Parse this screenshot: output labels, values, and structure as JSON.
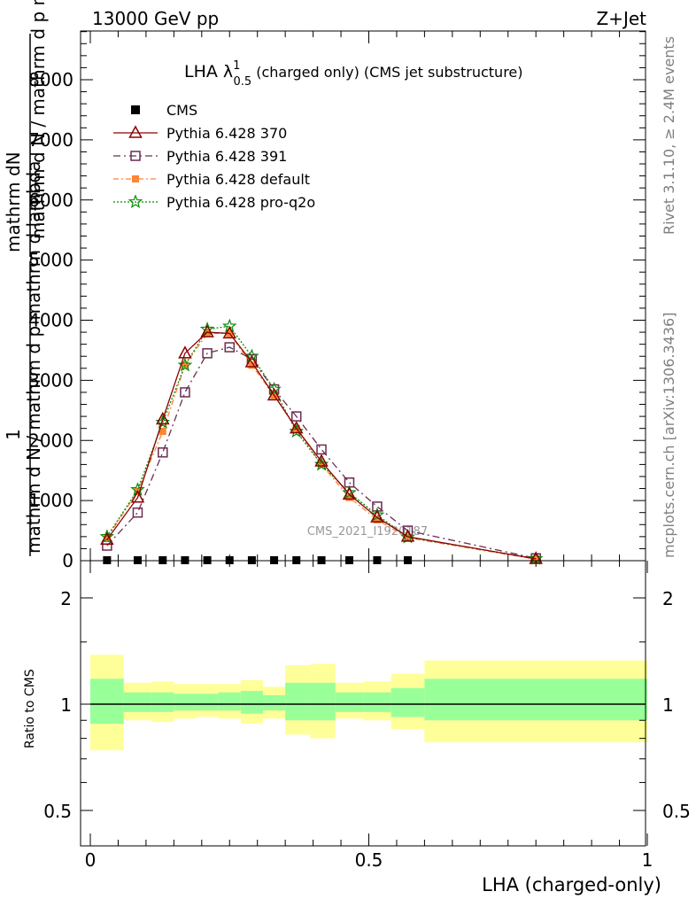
{
  "header": {
    "energy_label": "13000 GeV pp",
    "process_label": "Z+Jet"
  },
  "side_labels": {
    "rivet": "Rivet 3.1.10, ≥ 2.4M events",
    "mcplots": "mcplots.cern.ch [arXiv:1306.3436]"
  },
  "colors": {
    "cms": "#000000",
    "p370": "#8b0000",
    "p391": "#6b2c50",
    "pdefault": "#ff8533",
    "pq2o": "#0a8a0a",
    "band_outer": "#ffff99",
    "band_inner": "#99ff99"
  },
  "chart_data": [
    {
      "type": "line",
      "title": "LHA λ",
      "title_sup": "1",
      "title_sub": "0.5",
      "title_suffix": " (charged only) (CMS jet substructure)",
      "ylabel_top": "mathrm dN",
      "ylabel_frac_top": "1",
      "ylabel_bottom": "mathrm d N / mathrm d p mathrm d lambda",
      "ylabel_extra": "mathrm d N / mathrm d p mathrm d lambda",
      "ylim": [
        0,
        8800
      ],
      "yticks": [
        0,
        1000,
        2000,
        3000,
        4000,
        5000,
        6000,
        7000,
        8000
      ],
      "ytick_labels": [
        "0",
        "1000",
        "2000",
        "3000",
        "4000",
        "5000",
        "6000",
        "7000",
        "8000"
      ],
      "xlim": [
        -0.02,
        1.0
      ],
      "watermark": "CMS_2021_I1920187",
      "legend_position": "top-left",
      "series": [
        {
          "name": "CMS",
          "key": "cms",
          "marker": "square-filled",
          "x": [
            0.03,
            0.085,
            0.13,
            0.17,
            0.21,
            0.25,
            0.29,
            0.33,
            0.37,
            0.415,
            0.465,
            0.515,
            0.57
          ],
          "y": [
            0,
            0,
            0,
            0,
            0,
            0,
            0,
            0,
            0,
            0,
            0,
            0,
            0
          ]
        },
        {
          "name": "Pythia 6.428 370",
          "key": "p370",
          "marker": "triangle",
          "dash": "",
          "x": [
            0.03,
            0.085,
            0.13,
            0.17,
            0.21,
            0.25,
            0.29,
            0.33,
            0.37,
            0.415,
            0.465,
            0.515,
            0.57,
            0.8
          ],
          "y": [
            350,
            1050,
            2350,
            3450,
            3800,
            3780,
            3300,
            2750,
            2200,
            1650,
            1100,
            720,
            400,
            30
          ]
        },
        {
          "name": "Pythia 6.428 391",
          "key": "p391",
          "marker": "square-open",
          "dash": "8,4,2,4",
          "x": [
            0.03,
            0.085,
            0.13,
            0.17,
            0.21,
            0.25,
            0.29,
            0.33,
            0.37,
            0.415,
            0.465,
            0.515,
            0.57,
            0.8
          ],
          "y": [
            250,
            800,
            1800,
            2800,
            3450,
            3550,
            3350,
            2850,
            2400,
            1850,
            1300,
            900,
            500,
            40
          ]
        },
        {
          "name": "Pythia 6.428 default",
          "key": "pdefault",
          "marker": "square-filled",
          "dash": "6,3,2,3",
          "x": [
            0.03,
            0.085,
            0.13,
            0.17,
            0.21,
            0.25,
            0.29,
            0.33,
            0.37,
            0.415,
            0.465,
            0.515,
            0.57,
            0.8
          ],
          "y": [
            380,
            1150,
            2150,
            3250,
            3780,
            3780,
            3250,
            2750,
            2200,
            1600,
            1050,
            680,
            380,
            25
          ]
        },
        {
          "name": "Pythia 6.428 pro-q2o",
          "key": "pq2o",
          "marker": "star",
          "dash": "2,2",
          "x": [
            0.03,
            0.085,
            0.13,
            0.17,
            0.21,
            0.25,
            0.29,
            0.33,
            0.37,
            0.415,
            0.465,
            0.515,
            0.57,
            0.8
          ],
          "y": [
            400,
            1180,
            2300,
            3250,
            3850,
            3900,
            3400,
            2850,
            2150,
            1600,
            1130,
            760,
            390,
            35
          ]
        }
      ]
    },
    {
      "type": "area",
      "ylabel": "Ratio to CMS",
      "xlabel": "LHA (charged-only)",
      "ylim": [
        0.4,
        2.3
      ],
      "yticks": [
        0.5,
        1,
        2
      ],
      "ytick_labels": [
        "0.5",
        "1",
        "2"
      ],
      "xticks": [
        0,
        0.5,
        1
      ],
      "xtick_labels": [
        "0",
        "0.5",
        "1"
      ],
      "reference_line": 1,
      "bins": [
        {
          "x0": 0.0,
          "x1": 0.06,
          "outer": [
            0.74,
            1.38
          ],
          "inner": [
            0.88,
            1.18
          ]
        },
        {
          "x0": 0.06,
          "x1": 0.11,
          "outer": [
            0.9,
            1.15
          ],
          "inner": [
            0.95,
            1.08
          ]
        },
        {
          "x0": 0.11,
          "x1": 0.15,
          "outer": [
            0.89,
            1.16
          ],
          "inner": [
            0.95,
            1.08
          ]
        },
        {
          "x0": 0.15,
          "x1": 0.19,
          "outer": [
            0.91,
            1.14
          ],
          "inner": [
            0.96,
            1.07
          ]
        },
        {
          "x0": 0.19,
          "x1": 0.23,
          "outer": [
            0.92,
            1.14
          ],
          "inner": [
            0.96,
            1.07
          ]
        },
        {
          "x0": 0.23,
          "x1": 0.27,
          "outer": [
            0.91,
            1.14
          ],
          "inner": [
            0.96,
            1.08
          ]
        },
        {
          "x0": 0.27,
          "x1": 0.31,
          "outer": [
            0.88,
            1.17
          ],
          "inner": [
            0.94,
            1.09
          ]
        },
        {
          "x0": 0.31,
          "x1": 0.35,
          "outer": [
            0.91,
            1.12
          ],
          "inner": [
            0.96,
            1.06
          ]
        },
        {
          "x0": 0.35,
          "x1": 0.395,
          "outer": [
            0.82,
            1.29
          ],
          "inner": [
            0.9,
            1.15
          ]
        },
        {
          "x0": 0.395,
          "x1": 0.44,
          "outer": [
            0.8,
            1.3
          ],
          "inner": [
            0.9,
            1.15
          ]
        },
        {
          "x0": 0.44,
          "x1": 0.49,
          "outer": [
            0.91,
            1.15
          ],
          "inner": [
            0.95,
            1.08
          ]
        },
        {
          "x0": 0.49,
          "x1": 0.54,
          "outer": [
            0.9,
            1.16
          ],
          "inner": [
            0.95,
            1.08
          ]
        },
        {
          "x0": 0.54,
          "x1": 0.6,
          "outer": [
            0.85,
            1.22
          ],
          "inner": [
            0.92,
            1.11
          ]
        },
        {
          "x0": 0.6,
          "x1": 1.0,
          "outer": [
            0.78,
            1.33
          ],
          "inner": [
            0.9,
            1.18
          ]
        }
      ]
    }
  ]
}
